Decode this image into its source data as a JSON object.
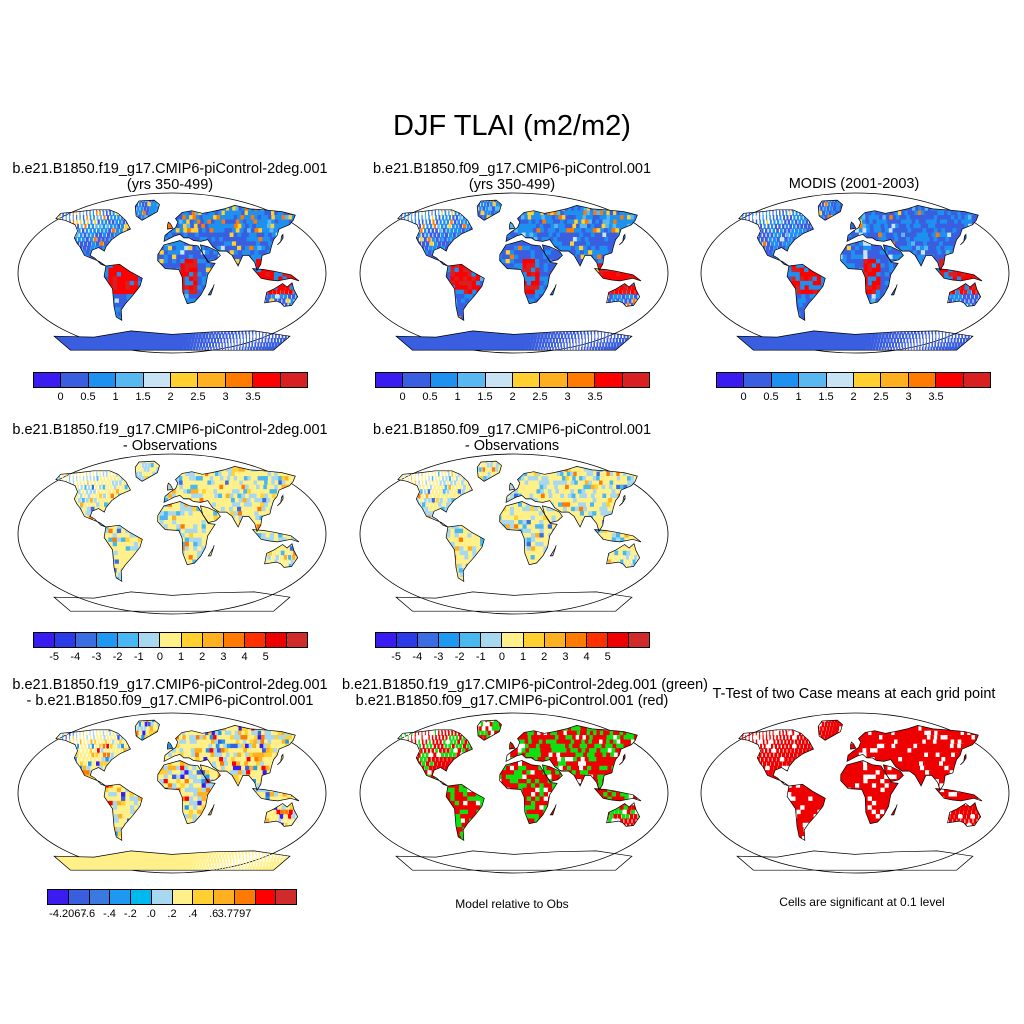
{
  "title": "DJF TLAI (m2/m2)",
  "panels": {
    "p1": {
      "line1": "b.e21.B1850.f19_g17.CMIP6-piControl-2deg.001",
      "line2": "(yrs 350-499)"
    },
    "p2": {
      "line1": "b.e21.B1850.f09_g17.CMIP6-piControl.001",
      "line2": "(yrs 350-499)"
    },
    "p3": {
      "line1": "MODIS (2001-2003)",
      "line2": ""
    },
    "p4": {
      "line1": "b.e21.B1850.f19_g17.CMIP6-piControl-2deg.001",
      "line2": "- Observations"
    },
    "p5": {
      "line1": "b.e21.B1850.f09_g17.CMIP6-piControl.001",
      "line2": "- Observations"
    },
    "p7": {
      "line1": "b.e21.B1850.f19_g17.CMIP6-piControl-2deg.001",
      "line2": "- b.e21.B1850.f09_g17.CMIP6-piControl.001"
    },
    "p8": {
      "line1": "b.e21.B1850.f19_g17.CMIP6-piControl-2deg.001 (green)",
      "line2": "b.e21.B1850.f09_g17.CMIP6-piControl.001 (red)"
    },
    "p9": {
      "line1": "T-Test of two Case means at each grid point",
      "line2": ""
    }
  },
  "notes": {
    "model_relative": "Model relative to Obs",
    "significance": "Cells are significant at 0.1 level"
  },
  "colorbars": {
    "abs": {
      "colors": [
        "#3a1cf0",
        "#3a5ee0",
        "#1e90f0",
        "#5ab8f0",
        "#c8e4f4",
        "#ffd030",
        "#ffb020",
        "#ff7a00",
        "#ff0000",
        "#d82020"
      ],
      "labels": [
        "0",
        "0.5",
        "1",
        "1.5",
        "2",
        "2.5",
        "3",
        "3.5"
      ]
    },
    "diff": {
      "colors": [
        "#3a1cf0",
        "#2a3ce8",
        "#3a6ee0",
        "#1e98f0",
        "#4ab8f0",
        "#a8d8f0",
        "#fff08a",
        "#ffd030",
        "#ffb020",
        "#ff7a00",
        "#ff3000",
        "#ee0000",
        "#d02a2a"
      ],
      "labels": [
        "-5",
        "-4",
        "-3",
        "-2",
        "-1",
        "0",
        "1",
        "2",
        "3",
        "4",
        "5"
      ]
    },
    "cc": {
      "colors": [
        "#3a1cf0",
        "#3a5ee0",
        "#3a7ae0",
        "#1e98f0",
        "#00b8f0",
        "#a8d8f0",
        "#fff08a",
        "#ffd030",
        "#ffb020",
        "#ff7a00",
        "#ff0000",
        "#d02a2a"
      ],
      "labels": [
        "-4.2067",
        "-.6",
        "-.4",
        "-.2",
        ".0",
        ".2",
        ".4",
        ".6",
        "3.7797"
      ]
    }
  }
}
